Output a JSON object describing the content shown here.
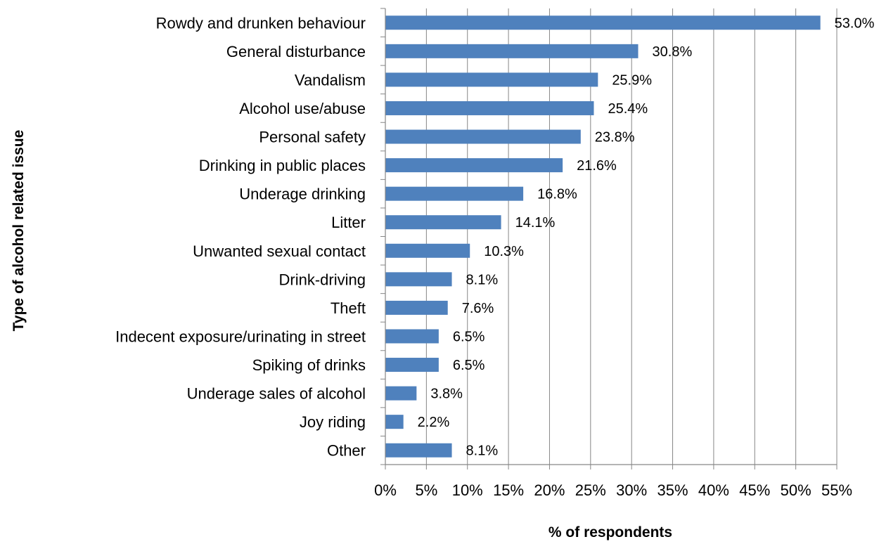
{
  "chart_data": {
    "type": "bar",
    "orientation": "horizontal",
    "categories": [
      "Rowdy and drunken behaviour",
      "General disturbance",
      "Vandalism",
      "Alcohol use/abuse",
      "Personal safety",
      "Drinking in public places",
      "Underage drinking",
      "Litter",
      "Unwanted sexual contact",
      "Drink-driving",
      "Theft",
      "Indecent exposure/urinating in street",
      "Spiking of drinks",
      "Underage sales of alcohol",
      "Joy riding",
      "Other"
    ],
    "values": [
      53.0,
      30.8,
      25.9,
      25.4,
      23.8,
      21.6,
      16.8,
      14.1,
      10.3,
      8.1,
      7.6,
      6.5,
      6.5,
      3.8,
      2.2,
      8.1
    ],
    "data_labels": [
      "53.0%",
      "30.8%",
      "25.9%",
      "25.4%",
      "23.8%",
      "21.6%",
      "16.8%",
      "14.1%",
      "10.3%",
      "8.1%",
      "7.6%",
      "6.5%",
      "6.5%",
      "3.8%",
      "2.2%",
      "8.1%"
    ],
    "xlabel": "% of respondents",
    "ylabel": "Type of alcohol related issue",
    "xlim": [
      0,
      55
    ],
    "xticks": [
      0,
      5,
      10,
      15,
      20,
      25,
      30,
      35,
      40,
      45,
      50,
      55
    ],
    "xtick_labels": [
      "0%",
      "5%",
      "10%",
      "15%",
      "20%",
      "25%",
      "30%",
      "35%",
      "40%",
      "45%",
      "50%",
      "55%"
    ],
    "grid": "vertical",
    "legend": "none",
    "bar_color": "#4f81bd",
    "grid_color": "#868686"
  }
}
